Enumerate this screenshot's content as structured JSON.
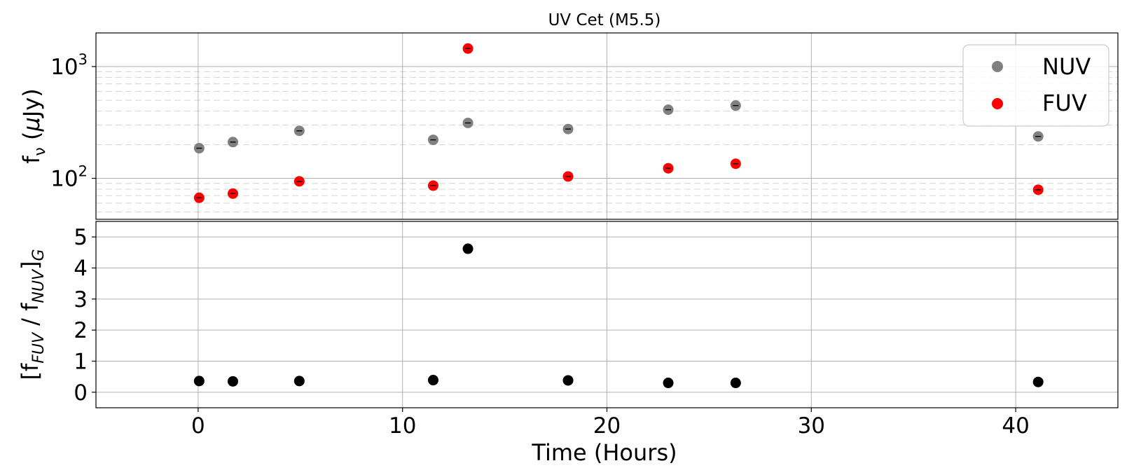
{
  "chart_data": [
    {
      "type": "scatter",
      "title": "UV Cet (M5.5)",
      "ylabel": "f_ν (μJy)",
      "yscale": "log",
      "ylim": [
        43,
        2000
      ],
      "xlim": [
        -5,
        45
      ],
      "grid": true,
      "legend": "top-right",
      "x_ticks": [
        0,
        10,
        20,
        30,
        40
      ],
      "y_ticks": [
        100,
        1000
      ],
      "y_tick_labels": [
        {
          "base": "10",
          "exp": "2"
        },
        {
          "base": "10",
          "exp": "3"
        }
      ],
      "colors": {
        "NUV": "#808080",
        "FUV": "#ff0000"
      },
      "series": [
        {
          "name": "NUV",
          "x": [
            0.05,
            1.7,
            4.95,
            11.5,
            13.2,
            18.1,
            23.0,
            26.3,
            41.1
          ],
          "y": [
            186,
            211,
            266,
            221,
            313,
            276,
            411,
            448,
            237
          ]
        },
        {
          "name": "FUV",
          "x": [
            0.05,
            1.7,
            4.95,
            11.5,
            13.2,
            18.1,
            23.0,
            26.3,
            41.1
          ],
          "y": [
            67,
            73,
            94,
            86,
            1450,
            104,
            123,
            135,
            79
          ]
        }
      ]
    },
    {
      "type": "scatter",
      "xlabel": "Time (Hours)",
      "ylabel": "[f_FUV / f_NUV]_G",
      "ylim": [
        -0.5,
        5.5
      ],
      "xlim": [
        -5,
        45
      ],
      "grid": true,
      "x_ticks": [
        0,
        10,
        20,
        30,
        40
      ],
      "y_ticks": [
        0,
        1,
        2,
        3,
        4,
        5
      ],
      "colors": {
        "ratio": "#000000"
      },
      "series": [
        {
          "x": [
            0.05,
            1.7,
            4.95,
            11.5,
            13.2,
            18.1,
            23.0,
            26.3,
            41.1
          ],
          "y": [
            0.36,
            0.35,
            0.36,
            0.39,
            4.62,
            0.38,
            0.3,
            0.3,
            0.33
          ]
        }
      ]
    }
  ]
}
